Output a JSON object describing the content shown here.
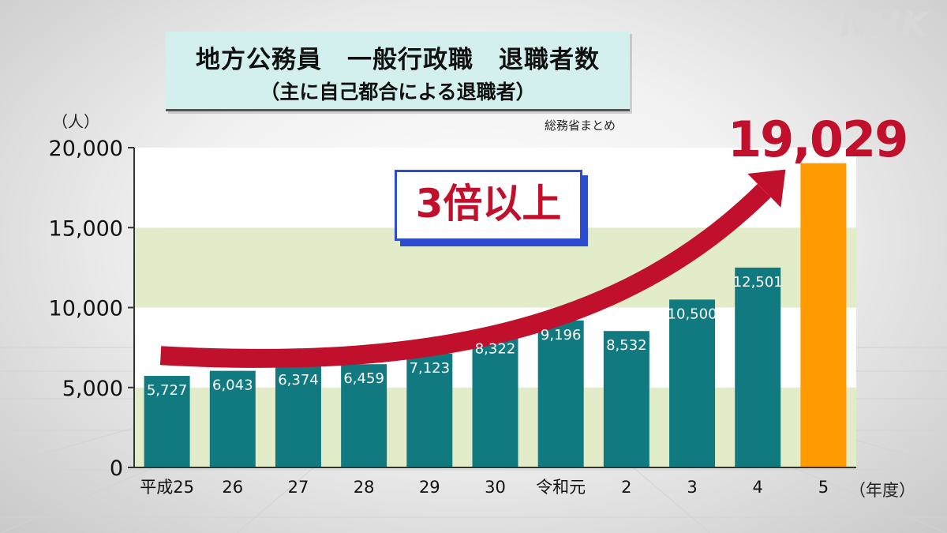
{
  "logo": "NHK",
  "title": {
    "main": "地方公務員　一般行政職　退職者数",
    "sub": "（主に自己都合による退職者）"
  },
  "source": "総務省まとめ",
  "unit_y": "（人）",
  "unit_x": "（年度）",
  "callout": "3倍以上",
  "highlight_value": "19,029",
  "colors": {
    "bar": "#117a80",
    "highlight_bar": "#ff9a00",
    "band": "#e3ecc8",
    "arrow": "#c0102b",
    "callout_border": "#2b4ccf"
  },
  "chart_data": {
    "type": "bar",
    "title": "地方公務員　一般行政職　退職者数",
    "subtitle": "（主に自己都合による退職者）",
    "xlabel": "（年度）",
    "ylabel": "（人）",
    "categories": [
      "平成25",
      "26",
      "27",
      "28",
      "29",
      "30",
      "令和元",
      "2",
      "3",
      "4",
      "5"
    ],
    "values": [
      5727,
      6043,
      6374,
      6459,
      7123,
      8322,
      9196,
      8532,
      10500,
      12501,
      19029
    ],
    "data_labels": [
      "5,727",
      "6,043",
      "6,374",
      "6,459",
      "7,123",
      "8,322",
      "9,196",
      "8,532",
      "10,500",
      "12,501",
      ""
    ],
    "ylim": [
      0,
      20000
    ],
    "yticks": [
      0,
      5000,
      10000,
      15000,
      20000
    ],
    "ytick_labels": [
      "0",
      "5,000",
      "10,000",
      "15,000",
      "20,000"
    ],
    "highlight_index": 10,
    "grid": false,
    "legend": "none"
  }
}
